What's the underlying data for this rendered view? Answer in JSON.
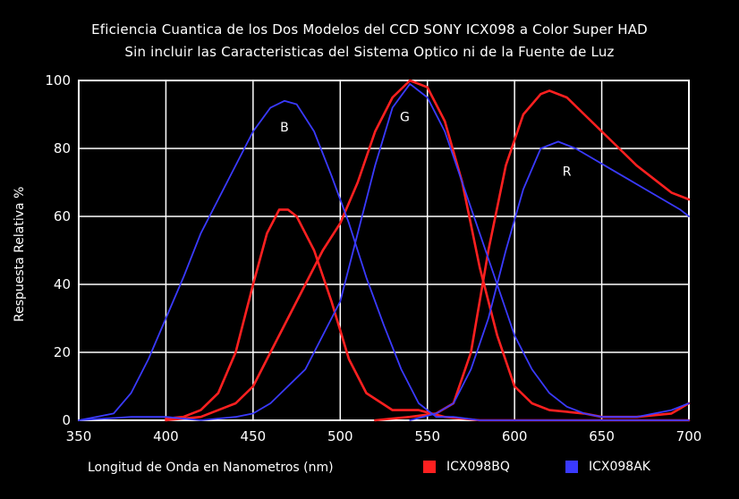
{
  "chart_data": {
    "type": "line",
    "title": "Eficiencia Cuantica de los Dos Modelos del CCD SONY ICX098 a Color Super HAD",
    "subtitle": "Sin incluir las Caracteristicas del Sistema Optico ni de la Fuente de Luz",
    "xlabel": "Longitud de Onda en Nanometros (nm)",
    "ylabel": "Respuesta Relativa %",
    "xlim": [
      350,
      700
    ],
    "ylim": [
      0,
      100
    ],
    "xticks": [
      "350",
      "400",
      "450",
      "500",
      "550",
      "600",
      "650",
      "700"
    ],
    "yticks": [
      "0",
      "20",
      "40",
      "60",
      "80",
      "100"
    ],
    "grid": true,
    "legend_position": "bottom-right",
    "colors": {
      "ICX098BQ": "#ff2020",
      "ICX098AK": "#3a3aff",
      "grid": "#ffffff",
      "background": "#000000"
    },
    "annotations": [
      {
        "text": "B",
        "x": 468,
        "y": 85
      },
      {
        "text": "G",
        "x": 537,
        "y": 88
      },
      {
        "text": "R",
        "x": 630,
        "y": 72
      }
    ],
    "series": [
      {
        "name": "ICX098BQ",
        "color": "#ff2020",
        "curves": [
          [
            [
              400,
              0.5
            ],
            [
              410,
              1
            ],
            [
              420,
              3
            ],
            [
              430,
              8
            ],
            [
              440,
              20
            ],
            [
              450,
              40
            ],
            [
              458,
              55
            ],
            [
              465,
              62
            ],
            [
              470,
              62
            ],
            [
              475,
              60
            ],
            [
              485,
              50
            ],
            [
              495,
              35
            ],
            [
              505,
              18
            ],
            [
              515,
              8
            ],
            [
              530,
              3
            ],
            [
              545,
              3
            ],
            [
              560,
              1
            ],
            [
              580,
              0
            ],
            [
              650,
              0
            ],
            [
              700,
              0
            ]
          ],
          [
            [
              400,
              0
            ],
            [
              420,
              1
            ],
            [
              440,
              5
            ],
            [
              450,
              10
            ],
            [
              460,
              20
            ],
            [
              470,
              30
            ],
            [
              480,
              40
            ],
            [
              490,
              50
            ],
            [
              500,
              58
            ],
            [
              510,
              70
            ],
            [
              520,
              85
            ],
            [
              530,
              95
            ],
            [
              540,
              100
            ],
            [
              550,
              98
            ],
            [
              560,
              88
            ],
            [
              570,
              70
            ],
            [
              580,
              45
            ],
            [
              590,
              25
            ],
            [
              600,
              10
            ],
            [
              610,
              5
            ],
            [
              620,
              3
            ],
            [
              640,
              2
            ],
            [
              650,
              1
            ],
            [
              670,
              1
            ],
            [
              690,
              2
            ],
            [
              700,
              5
            ]
          ],
          [
            [
              520,
              0
            ],
            [
              540,
              1
            ],
            [
              555,
              2
            ],
            [
              565,
              5
            ],
            [
              575,
              20
            ],
            [
              585,
              50
            ],
            [
              595,
              75
            ],
            [
              605,
              90
            ],
            [
              615,
              96
            ],
            [
              620,
              97
            ],
            [
              630,
              95
            ],
            [
              640,
              90
            ],
            [
              650,
              85
            ],
            [
              660,
              80
            ],
            [
              670,
              75
            ],
            [
              680,
              71
            ],
            [
              690,
              67
            ],
            [
              700,
              65
            ]
          ]
        ]
      },
      {
        "name": "ICX098AK",
        "color": "#3a3aff",
        "curves": [
          [
            [
              350,
              0
            ],
            [
              360,
              1
            ],
            [
              370,
              2
            ],
            [
              380,
              8
            ],
            [
              390,
              18
            ],
            [
              400,
              30
            ],
            [
              410,
              42
            ],
            [
              420,
              55
            ],
            [
              430,
              65
            ],
            [
              440,
              75
            ],
            [
              450,
              85
            ],
            [
              460,
              92
            ],
            [
              468,
              94
            ],
            [
              475,
              93
            ],
            [
              485,
              85
            ],
            [
              495,
              72
            ],
            [
              505,
              58
            ],
            [
              515,
              42
            ],
            [
              525,
              28
            ],
            [
              535,
              15
            ],
            [
              545,
              5
            ],
            [
              555,
              1
            ],
            [
              565,
              1
            ],
            [
              580,
              0
            ],
            [
              700,
              0
            ]
          ],
          [
            [
              350,
              0
            ],
            [
              380,
              1
            ],
            [
              400,
              1
            ],
            [
              420,
              0
            ],
            [
              440,
              1
            ],
            [
              450,
              2
            ],
            [
              460,
              5
            ],
            [
              470,
              10
            ],
            [
              480,
              15
            ],
            [
              490,
              25
            ],
            [
              500,
              35
            ],
            [
              510,
              55
            ],
            [
              520,
              75
            ],
            [
              530,
              92
            ],
            [
              540,
              99
            ],
            [
              550,
              95
            ],
            [
              560,
              85
            ],
            [
              570,
              70
            ],
            [
              580,
              55
            ],
            [
              590,
              40
            ],
            [
              600,
              25
            ],
            [
              610,
              15
            ],
            [
              620,
              8
            ],
            [
              630,
              4
            ],
            [
              640,
              2
            ],
            [
              650,
              1
            ],
            [
              670,
              1
            ],
            [
              690,
              3
            ],
            [
              700,
              5
            ]
          ],
          [
            [
              540,
              0
            ],
            [
              555,
              2
            ],
            [
              565,
              5
            ],
            [
              575,
              15
            ],
            [
              585,
              30
            ],
            [
              595,
              50
            ],
            [
              605,
              68
            ],
            [
              615,
              80
            ],
            [
              625,
              82
            ],
            [
              635,
              80
            ],
            [
              645,
              77
            ],
            [
              655,
              74
            ],
            [
              665,
              71
            ],
            [
              675,
              68
            ],
            [
              685,
              65
            ],
            [
              695,
              62
            ],
            [
              700,
              60
            ]
          ]
        ]
      }
    ]
  }
}
